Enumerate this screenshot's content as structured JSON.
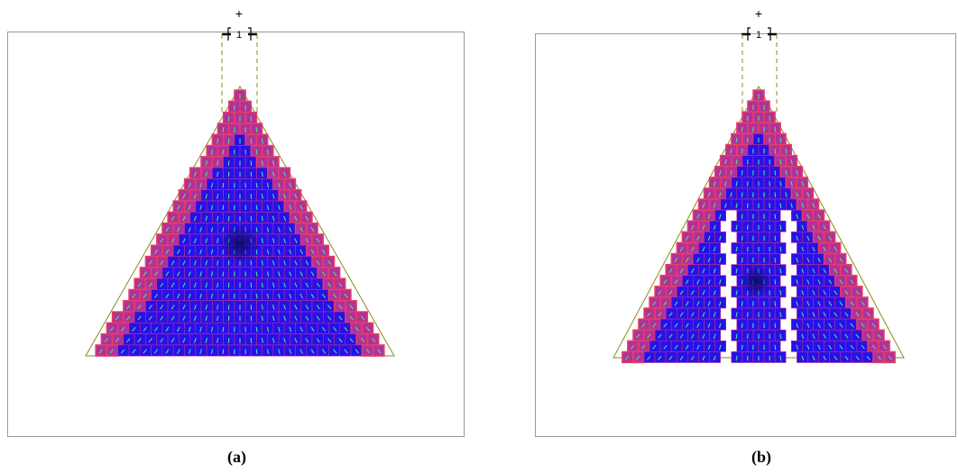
{
  "panels": [
    {
      "caption": "(a)",
      "port_label": "1"
    },
    {
      "caption": "(b)",
      "port_label": "1"
    }
  ],
  "colors": {
    "cell_fill": "#2a10e8",
    "cell_border": "#b43099",
    "edge_glow": "#e84060",
    "vector_arrow": "#44e68a",
    "outline": "#8c8a1e",
    "frame": "#9a9a9a",
    "marker": "#000000"
  }
}
